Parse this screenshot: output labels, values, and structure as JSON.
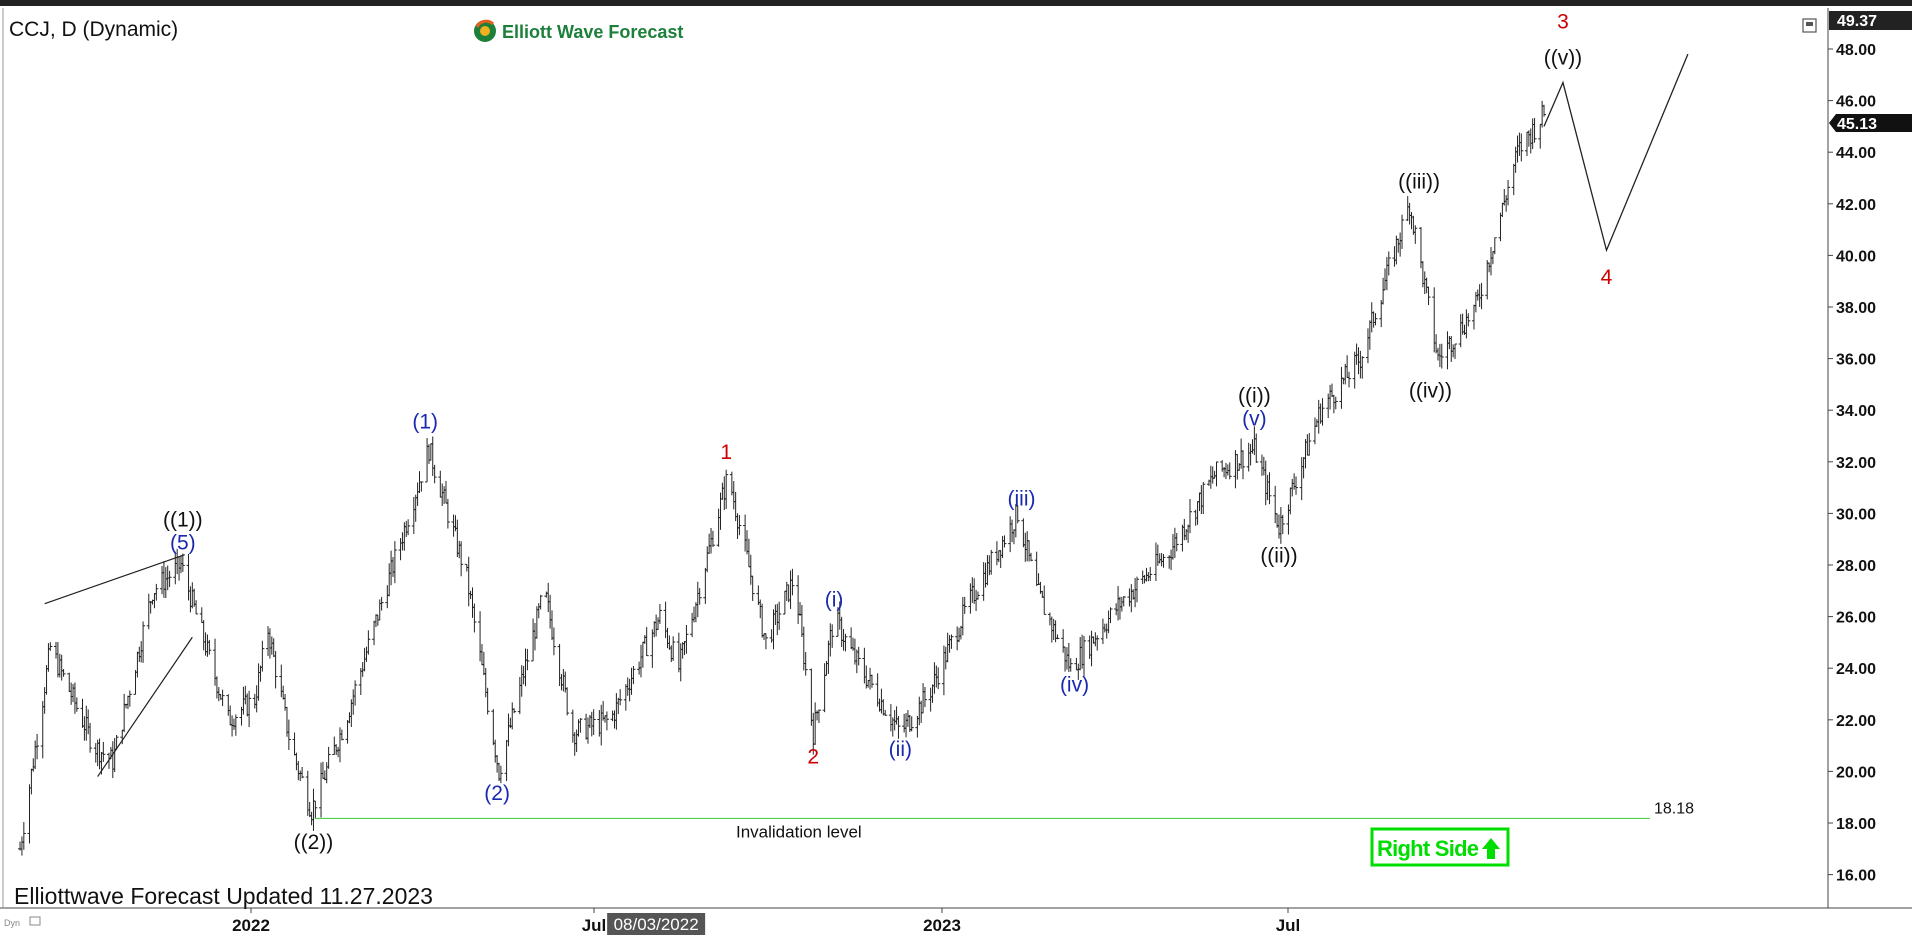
{
  "header": {
    "symbol": "CCJ, D (Dynamic)",
    "logo_text": "Elliott Wave Forecast"
  },
  "footer": {
    "updated": "Elliottwave Forecast Updated 11.27.2023"
  },
  "badge": {
    "label": "Right Side",
    "color": "#00dd00"
  },
  "colors": {
    "black_labels": "#111111",
    "blue_labels": "#1a28b0",
    "red_labels": "#cc0000",
    "invalidation": "#33cc33"
  },
  "chart_data": {
    "type": "ohlc",
    "y_ticks": [
      "16.00",
      "18.00",
      "20.00",
      "22.00",
      "24.00",
      "26.00",
      "28.00",
      "30.00",
      "32.00",
      "34.00",
      "36.00",
      "38.00",
      "40.00",
      "42.00",
      "44.00",
      "46.00",
      "48.00"
    ],
    "ylim": [
      15.0,
      49.6
    ],
    "last_price": "45.13",
    "top_price": "49.37",
    "x_ticks": [
      "2022",
      "Jul",
      "2023",
      "Jul"
    ],
    "cursor_date": "08/03/2022",
    "invalidation": {
      "label": "Invalidation level",
      "value": 18.18,
      "value_label": "18.18"
    },
    "price_path": [
      [
        "2021-09-01",
        17.0
      ],
      [
        "2021-09-17",
        24.8
      ],
      [
        "2021-10-10",
        21.0
      ],
      [
        "2021-10-20",
        20.4
      ],
      [
        "2021-11-10",
        27.0
      ],
      [
        "2021-11-25",
        28.0
      ],
      [
        "2021-12-20",
        22.0
      ],
      [
        "2022-01-03",
        22.8
      ],
      [
        "2022-01-10",
        25.5
      ],
      [
        "2022-01-22",
        21.0
      ],
      [
        "2022-02-02",
        18.5
      ],
      [
        "2022-02-20",
        22.0
      ],
      [
        "2022-03-15",
        27.5
      ],
      [
        "2022-04-05",
        32.5
      ],
      [
        "2022-04-25",
        27.5
      ],
      [
        "2022-05-12",
        20.0
      ],
      [
        "2022-06-05",
        27.0
      ],
      [
        "2022-06-20",
        21.5
      ],
      [
        "2022-07-10",
        22.0
      ],
      [
        "2022-08-05",
        26.0
      ],
      [
        "2022-08-15",
        24.0
      ],
      [
        "2022-09-10",
        31.5
      ],
      [
        "2022-09-30",
        25.0
      ],
      [
        "2022-10-15",
        27.5
      ],
      [
        "2022-10-25",
        21.5
      ],
      [
        "2022-11-05",
        26.0
      ],
      [
        "2022-11-15",
        24.5
      ],
      [
        "2022-12-10",
        21.5
      ],
      [
        "2022-12-25",
        23.0
      ],
      [
        "2023-01-15",
        26.5
      ],
      [
        "2023-02-10",
        30.0
      ],
      [
        "2023-02-20",
        27.0
      ],
      [
        "2023-03-10",
        24.0
      ],
      [
        "2023-04-05",
        26.5
      ],
      [
        "2023-05-01",
        28.5
      ],
      [
        "2023-05-25",
        31.5
      ],
      [
        "2023-06-15",
        32.5
      ],
      [
        "2023-06-28",
        29.5
      ],
      [
        "2023-07-20",
        34.0
      ],
      [
        "2023-08-10",
        36.0
      ],
      [
        "2023-09-05",
        42.0
      ],
      [
        "2023-09-20",
        36.0
      ],
      [
        "2023-10-10",
        38.0
      ],
      [
        "2023-11-01",
        44.0
      ],
      [
        "2023-11-15",
        45.5
      ]
    ],
    "projection": [
      [
        "2023-11-15",
        45.0
      ],
      [
        "2023-11-25",
        46.7
      ],
      [
        "2023-12-18",
        40.2
      ],
      [
        "2024-01-30",
        47.8
      ]
    ],
    "wedge_lines": [
      [
        [
          "2021-09-14",
          26.5
        ],
        [
          "2021-11-27",
          28.4
        ]
      ],
      [
        [
          "2021-10-12",
          19.8
        ],
        [
          "2021-12-01",
          25.2
        ]
      ]
    ],
    "wave_labels": [
      {
        "text": "((1))",
        "date": "2021-11-26",
        "price": 29.5,
        "color": "black"
      },
      {
        "text": "(5)",
        "date": "2021-11-26",
        "price": 28.6,
        "color": "blue"
      },
      {
        "text": "((2))",
        "date": "2022-02-03",
        "price": 17.0,
        "color": "black"
      },
      {
        "text": "(1)",
        "date": "2022-04-03",
        "price": 33.3,
        "color": "blue"
      },
      {
        "text": "(2)",
        "date": "2022-05-11",
        "price": 18.9,
        "color": "blue"
      },
      {
        "text": "1",
        "date": "2022-09-09",
        "price": 32.1,
        "color": "red"
      },
      {
        "text": "2",
        "date": "2022-10-25",
        "price": 20.3,
        "color": "red"
      },
      {
        "text": "(i)",
        "date": "2022-11-05",
        "price": 26.4,
        "color": "blue"
      },
      {
        "text": "(ii)",
        "date": "2022-12-10",
        "price": 20.6,
        "color": "blue"
      },
      {
        "text": "(iii)",
        "date": "2023-02-12",
        "price": 30.3,
        "color": "blue"
      },
      {
        "text": "(iv)",
        "date": "2023-03-12",
        "price": 23.1,
        "color": "blue"
      },
      {
        "text": "((i))",
        "date": "2023-06-15",
        "price": 34.3,
        "color": "black"
      },
      {
        "text": "(v)",
        "date": "2023-06-15",
        "price": 33.4,
        "color": "blue"
      },
      {
        "text": "((ii))",
        "date": "2023-06-28",
        "price": 28.1,
        "color": "black"
      },
      {
        "text": "((iii))",
        "date": "2023-09-10",
        "price": 42.6,
        "color": "black"
      },
      {
        "text": "((iv))",
        "date": "2023-09-16",
        "price": 34.5,
        "color": "black"
      },
      {
        "text": "((v))",
        "date": "2023-11-25",
        "price": 47.4,
        "color": "black"
      },
      {
        "text": "3",
        "date": "2023-11-25",
        "price": 48.8,
        "color": "red"
      },
      {
        "text": "4",
        "date": "2023-12-18",
        "price": 38.9,
        "color": "red"
      }
    ]
  }
}
